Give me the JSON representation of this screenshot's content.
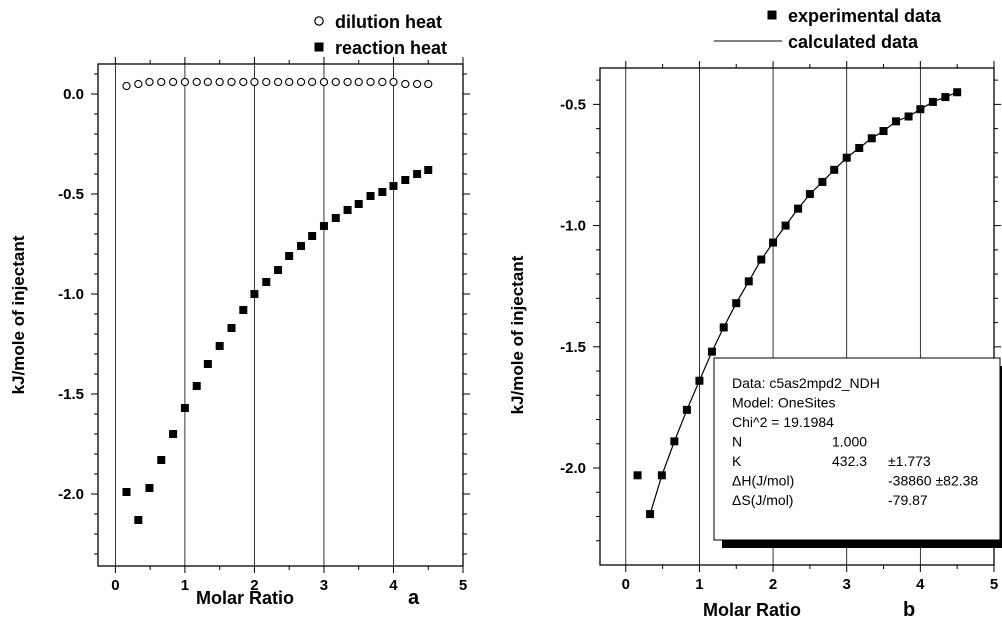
{
  "chart_data": [
    {
      "type": "scatter",
      "panel_label": "a",
      "xlabel": "Molar Ratio",
      "ylabel": "kJ/mole of injectant",
      "xlim": [
        -0.25,
        5
      ],
      "ylim": [
        -2.36,
        0.15
      ],
      "xticks": [
        0,
        1,
        2,
        3,
        4,
        5
      ],
      "yticks": [
        0.0,
        -0.5,
        -1.0,
        -1.5,
        -2.0
      ],
      "ytick_labels": [
        "0.0",
        "-0.5",
        "-1.0",
        "-1.5",
        "-2.0"
      ],
      "grid": "vertical-lines-at-major-x-ticks",
      "legend_position": "top-right, above plot",
      "series": [
        {
          "name": "dilution heat",
          "marker": "open-circle",
          "x": [
            0.16,
            0.33,
            0.49,
            0.66,
            0.83,
            1.0,
            1.17,
            1.33,
            1.5,
            1.67,
            1.84,
            2.0,
            2.17,
            2.34,
            2.5,
            2.67,
            2.83,
            3.0,
            3.17,
            3.34,
            3.5,
            3.67,
            3.84,
            4.0,
            4.17,
            4.34,
            4.5
          ],
          "y": [
            0.04,
            0.05,
            0.06,
            0.06,
            0.06,
            0.06,
            0.06,
            0.06,
            0.06,
            0.06,
            0.06,
            0.06,
            0.06,
            0.06,
            0.06,
            0.06,
            0.06,
            0.06,
            0.06,
            0.06,
            0.06,
            0.06,
            0.06,
            0.06,
            0.05,
            0.05,
            0.05
          ]
        },
        {
          "name": "reaction heat",
          "marker": "filled-square",
          "x": [
            0.16,
            0.33,
            0.49,
            0.66,
            0.83,
            1.0,
            1.17,
            1.33,
            1.5,
            1.67,
            1.84,
            2.0,
            2.17,
            2.34,
            2.5,
            2.67,
            2.83,
            3.0,
            3.17,
            3.34,
            3.5,
            3.67,
            3.84,
            4.0,
            4.17,
            4.34,
            4.5
          ],
          "y": [
            -1.99,
            -2.13,
            -1.97,
            -1.83,
            -1.7,
            -1.57,
            -1.46,
            -1.35,
            -1.26,
            -1.17,
            -1.08,
            -1.0,
            -0.94,
            -0.88,
            -0.81,
            -0.76,
            -0.71,
            -0.66,
            -0.62,
            -0.58,
            -0.55,
            -0.51,
            -0.49,
            -0.46,
            -0.43,
            -0.4,
            -0.38
          ]
        }
      ]
    },
    {
      "type": "scatter",
      "panel_label": "b",
      "xlabel": "Molar Ratio",
      "ylabel": "kJ/mole of injectant",
      "xlim": [
        -0.35,
        5
      ],
      "ylim": [
        -2.4,
        -0.35
      ],
      "xticks": [
        0,
        1,
        2,
        3,
        4,
        5
      ],
      "yticks": [
        -0.5,
        -1.0,
        -1.5,
        -2.0
      ],
      "ytick_labels": [
        "-0.5",
        "-1.0",
        "-1.5",
        "-2.0"
      ],
      "grid": "vertical-lines-at-major-x-ticks",
      "legend_position": "top-right, above plot",
      "series": [
        {
          "name": "experimental data",
          "marker": "filled-square",
          "x": [
            0.16,
            0.33,
            0.49,
            0.66,
            0.83,
            1.0,
            1.17,
            1.33,
            1.5,
            1.67,
            1.84,
            2.0,
            2.17,
            2.34,
            2.5,
            2.67,
            2.83,
            3.0,
            3.17,
            3.34,
            3.5,
            3.67,
            3.84,
            4.0,
            4.17,
            4.34,
            4.5
          ],
          "y": [
            -2.03,
            -2.19,
            -2.03,
            -1.89,
            -1.76,
            -1.64,
            -1.52,
            -1.42,
            -1.32,
            -1.23,
            -1.14,
            -1.07,
            -1.0,
            -0.93,
            -0.87,
            -0.82,
            -0.77,
            -0.72,
            -0.68,
            -0.64,
            -0.61,
            -0.57,
            -0.55,
            -0.52,
            -0.49,
            -0.47,
            -0.45
          ]
        },
        {
          "name": "calculated data",
          "marker": "line",
          "x": [
            0.33,
            0.49,
            0.66,
            0.83,
            1.0,
            1.17,
            1.33,
            1.5,
            1.67,
            1.84,
            2.0,
            2.17,
            2.34,
            2.5,
            2.67,
            2.83,
            3.0,
            3.17,
            3.34,
            3.5,
            3.67,
            3.84,
            4.0,
            4.17,
            4.34,
            4.5
          ],
          "y": [
            -2.19,
            -2.03,
            -1.89,
            -1.76,
            -1.64,
            -1.52,
            -1.42,
            -1.32,
            -1.23,
            -1.14,
            -1.07,
            -1.0,
            -0.93,
            -0.87,
            -0.82,
            -0.77,
            -0.72,
            -0.68,
            -0.64,
            -0.61,
            -0.57,
            -0.55,
            -0.52,
            -0.49,
            -0.47,
            -0.45
          ]
        }
      ],
      "fit_box": {
        "lines": [
          [
            "Data: c5as2mpd2_NDH"
          ],
          [
            "Model: OneSites"
          ],
          [
            "Chi^2 = 19.1984"
          ],
          [
            "N",
            "1.000"
          ],
          [
            "K",
            "432.3",
            "±1.773"
          ],
          [
            "ΔH(J/mol)",
            "-38860 ±82.38"
          ],
          [
            "ΔS(J/mol)",
            "-79.87"
          ]
        ]
      }
    }
  ]
}
